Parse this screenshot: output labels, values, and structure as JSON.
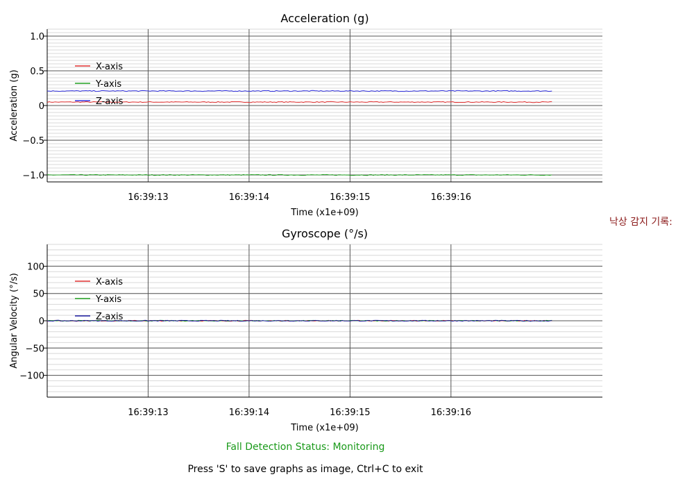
{
  "chart_data": [
    {
      "type": "line",
      "title": "Acceleration (g)",
      "xlabel": "Time (x1e+09)",
      "ylabel": "Acceleration (g)",
      "x_ticks": [
        "16:39:13",
        "16:39:14",
        "16:39:15",
        "16:39:16"
      ],
      "x_tick_positions_s": [
        13,
        14,
        15,
        16
      ],
      "x_range_s": [
        12.0,
        17.5
      ],
      "data_x_range_s": [
        12.0,
        17.0
      ],
      "ylim": [
        -1.1,
        1.1
      ],
      "y_ticks": [
        1.0,
        0.5,
        0,
        -0.5,
        -1.0
      ],
      "y_tick_labels": [
        "1.0",
        "0.5",
        "0",
        "−0.5",
        "−1.0"
      ],
      "minor_y_step": 0.05,
      "grid": true,
      "legend_position": "upper-left",
      "series": [
        {
          "name": "X-axis",
          "color": "#e03030",
          "value": 0.05
        },
        {
          "name": "Y-axis",
          "color": "#20a020",
          "value": -1.0
        },
        {
          "name": "Z-axis",
          "color": "#3030e0",
          "value": 0.21
        }
      ]
    },
    {
      "type": "line",
      "title": "Gyroscope (°/s)",
      "xlabel": "Time (x1e+09)",
      "ylabel": "Angular Velocity (°/s)",
      "x_ticks": [
        "16:39:13",
        "16:39:14",
        "16:39:15",
        "16:39:16"
      ],
      "x_tick_positions_s": [
        13,
        14,
        15,
        16
      ],
      "x_range_s": [
        12.0,
        17.5
      ],
      "data_x_range_s": [
        12.0,
        17.0
      ],
      "ylim": [
        -140,
        140
      ],
      "y_ticks": [
        100,
        50,
        0,
        -50,
        -100
      ],
      "y_tick_labels": [
        "100",
        "50",
        "0",
        "−50",
        "−100"
      ],
      "minor_y_step": 10,
      "grid": true,
      "legend_position": "upper-left",
      "series": [
        {
          "name": "X-axis",
          "color": "#e03030",
          "value": 0
        },
        {
          "name": "Y-axis",
          "color": "#20a020",
          "value": 0
        },
        {
          "name": "Z-axis",
          "color": "#1a1aa0",
          "value": 0
        }
      ]
    }
  ],
  "status": {
    "fall_detection": "Fall Detection Status: Monitoring",
    "fall_log_label": "낙상 감지 기록:",
    "hint": "Press 'S' to save graphs as image, Ctrl+C to exit"
  }
}
